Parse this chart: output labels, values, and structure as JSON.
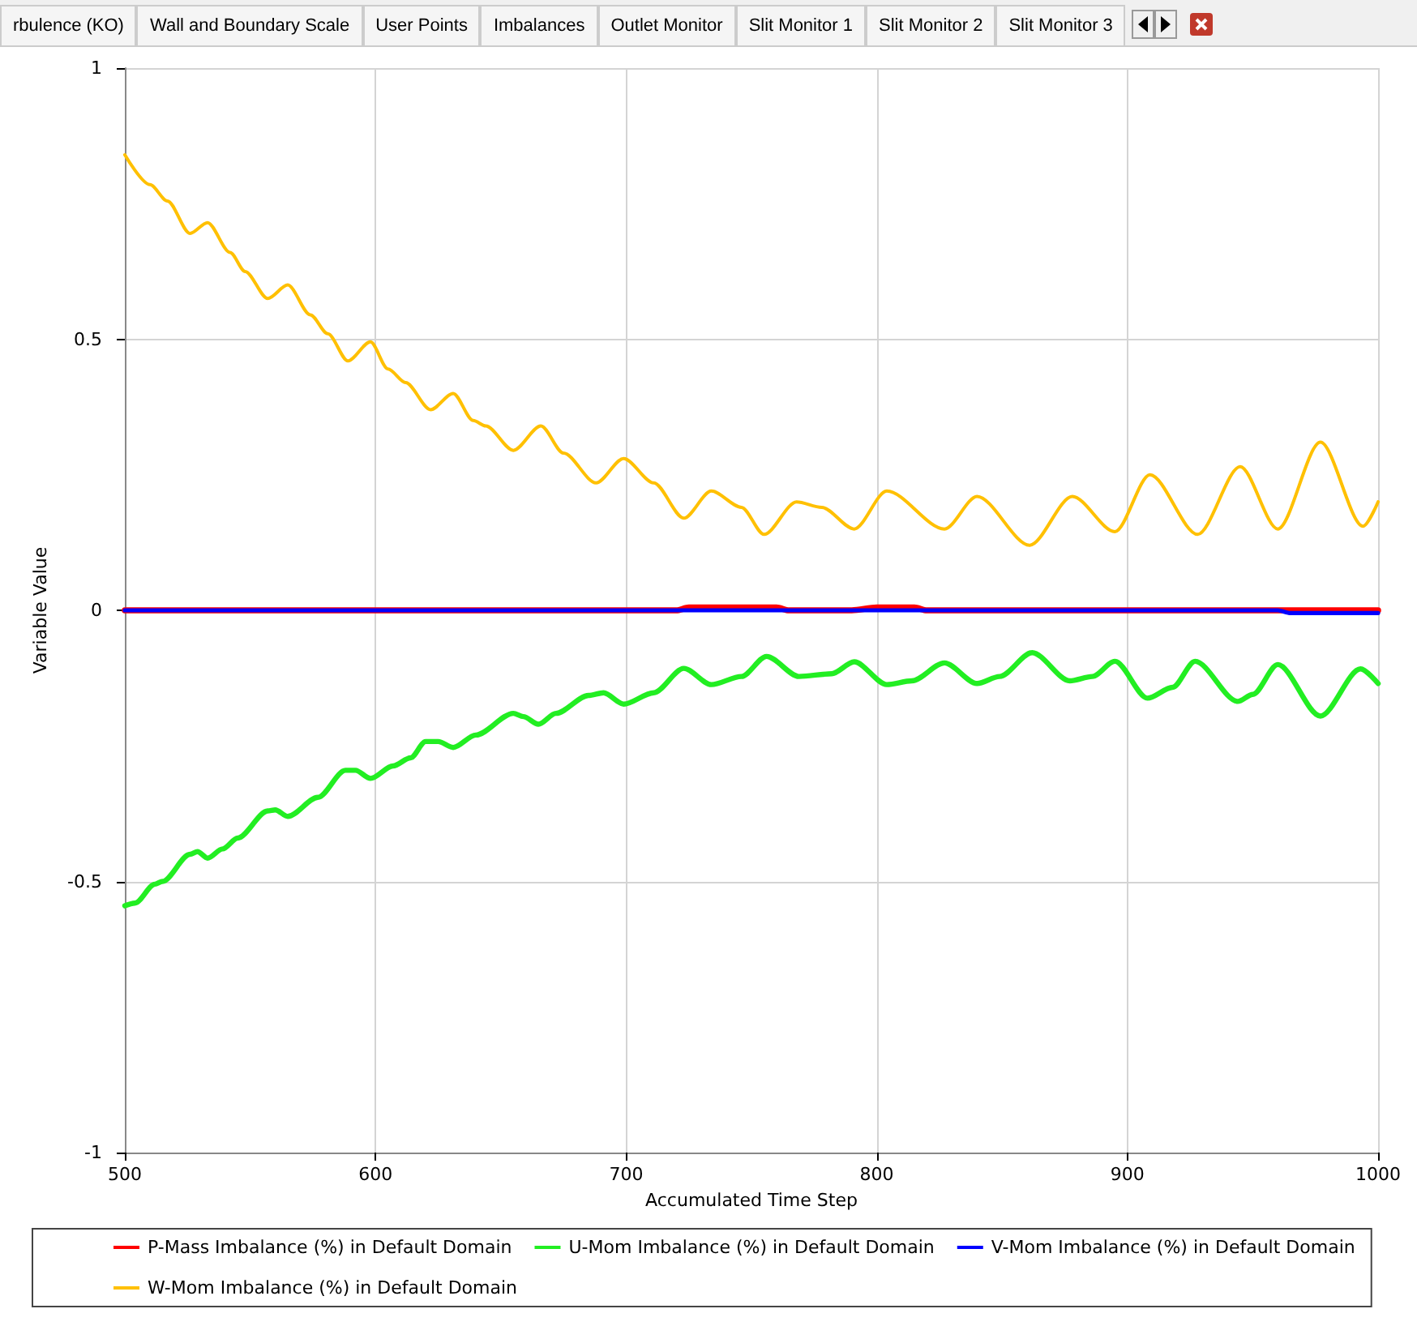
{
  "chart_data": {
    "type": "line",
    "xlabel": "Accumulated Time Step",
    "ylabel": "Variable Value",
    "annotations": [
      "rbulence (KO)",
      "Wall and Boundary Scale",
      "User Points",
      "Imbalances",
      "Outlet Monitor",
      "Slit Monitor 1",
      "Slit Monitor 2",
      "Slit Monitor 3"
    ],
    "xlim": [
      500,
      1000
    ],
    "xticks": [
      500,
      600,
      700,
      800,
      900,
      1000
    ],
    "ylim": [
      -1,
      1
    ],
    "yticks": [
      -1,
      -0.5,
      0,
      0.5,
      1
    ],
    "grid": true,
    "legend": "bottom",
    "marker": "none",
    "line_style": "solid",
    "series": [
      {
        "name": "P-Mass Imbalance (%) in Default Domain",
        "color": "#ff0000",
        "x": [
          500,
          720,
          725,
          760,
          765,
          790,
          800,
          815,
          820,
          1000
        ],
        "values": [
          0,
          0,
          0.005,
          0.005,
          0,
          0,
          0.005,
          0.005,
          0,
          0
        ]
      },
      {
        "name": "U-Mom Imbalance (%) in Default Domain",
        "color": "#22ee22",
        "x": [
          500,
          504,
          512,
          515,
          526,
          529,
          533,
          539,
          545,
          557,
          560,
          565,
          577,
          588,
          592,
          598,
          607,
          614,
          620,
          625,
          631,
          640,
          655,
          659,
          665,
          672,
          685,
          691,
          699,
          711,
          723,
          734,
          746,
          756,
          769,
          782,
          791,
          804,
          814,
          827,
          840,
          849,
          862,
          877,
          886,
          895,
          908,
          918,
          927,
          944,
          950,
          960,
          977,
          993,
          1000
        ],
        "values": [
          -0.545,
          -0.54,
          -0.505,
          -0.5,
          -0.45,
          -0.445,
          -0.457,
          -0.44,
          -0.42,
          -0.37,
          -0.368,
          -0.38,
          -0.345,
          -0.295,
          -0.295,
          -0.31,
          -0.287,
          -0.272,
          -0.242,
          -0.242,
          -0.253,
          -0.23,
          -0.19,
          -0.196,
          -0.21,
          -0.19,
          -0.157,
          -0.152,
          -0.173,
          -0.152,
          -0.107,
          -0.137,
          -0.122,
          -0.085,
          -0.122,
          -0.117,
          -0.095,
          -0.137,
          -0.13,
          -0.097,
          -0.135,
          -0.122,
          -0.078,
          -0.13,
          -0.122,
          -0.094,
          -0.162,
          -0.142,
          -0.094,
          -0.168,
          -0.155,
          -0.1,
          -0.195,
          -0.108,
          -0.135
        ]
      },
      {
        "name": "V-Mom Imbalance (%) in Default Domain",
        "color": "#0000ff",
        "x": [
          500,
          960,
          965,
          1000
        ],
        "values": [
          0,
          0,
          -0.005,
          -0.005
        ]
      },
      {
        "name": "W-Mom Imbalance (%) in Default Domain",
        "color": "#ffc000",
        "x": [
          500,
          510,
          517,
          526,
          533,
          542,
          548,
          557,
          565,
          574,
          581,
          589,
          598,
          605,
          612,
          622,
          631,
          639,
          644,
          655,
          666,
          675,
          688,
          699,
          711,
          723,
          734,
          746,
          755,
          768,
          778,
          791,
          804,
          827,
          840,
          861,
          878,
          895,
          909,
          928,
          945,
          960,
          977,
          994,
          1000
        ],
        "values": [
          0.84,
          0.785,
          0.755,
          0.695,
          0.715,
          0.66,
          0.625,
          0.575,
          0.6,
          0.545,
          0.51,
          0.46,
          0.495,
          0.445,
          0.42,
          0.37,
          0.4,
          0.35,
          0.34,
          0.295,
          0.34,
          0.29,
          0.235,
          0.28,
          0.235,
          0.17,
          0.22,
          0.19,
          0.14,
          0.2,
          0.19,
          0.15,
          0.22,
          0.15,
          0.21,
          0.12,
          0.21,
          0.145,
          0.25,
          0.14,
          0.265,
          0.15,
          0.31,
          0.155,
          0.2
        ]
      }
    ]
  }
}
